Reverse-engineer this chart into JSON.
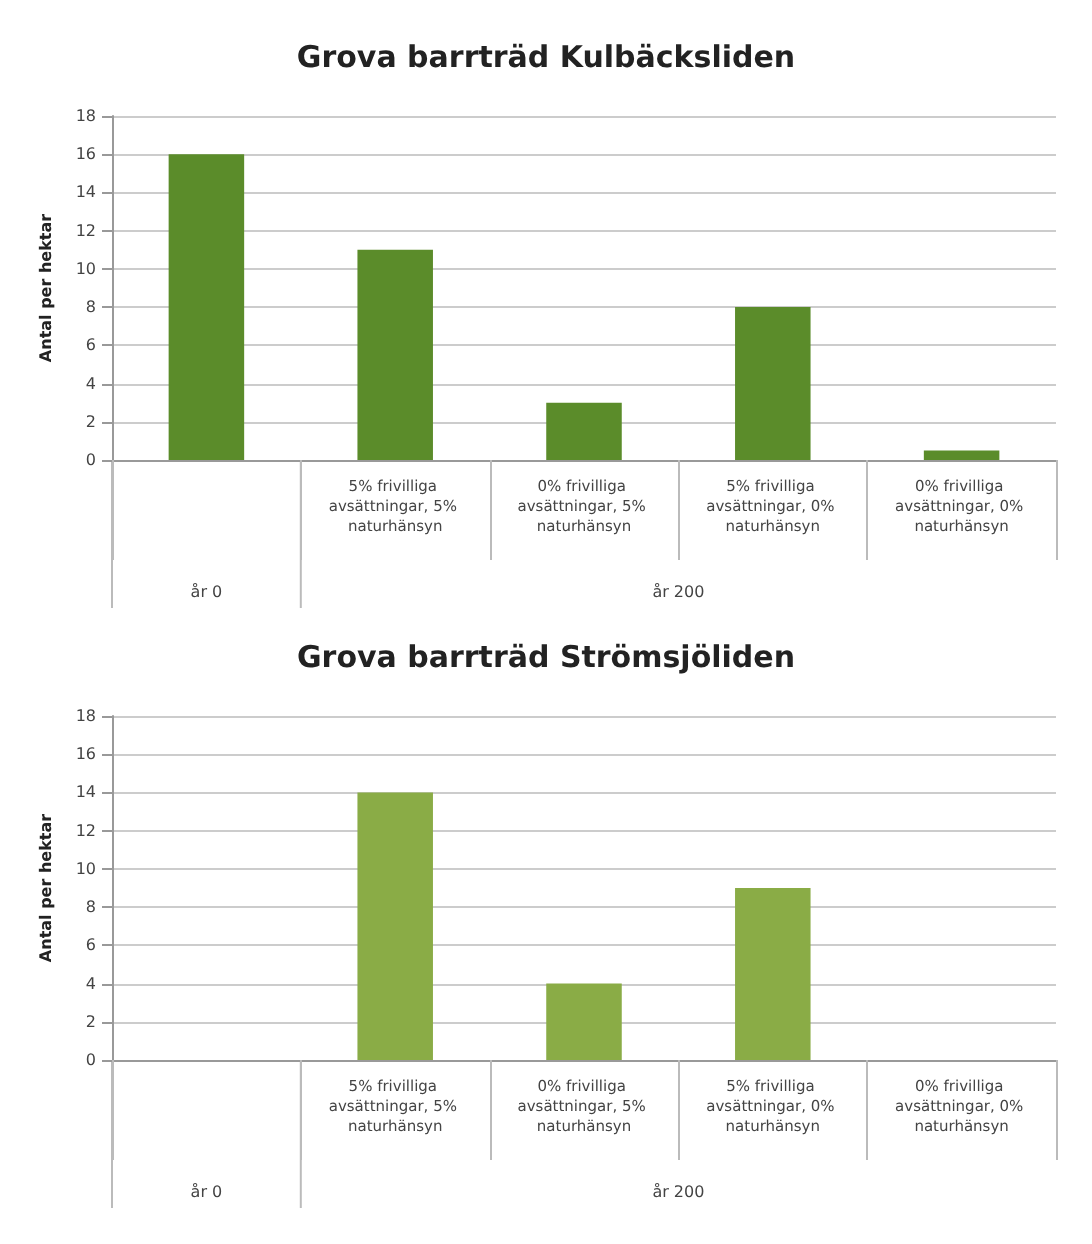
{
  "chart_data": [
    {
      "type": "bar",
      "title": "Grova barrträd Kulbäcksliden",
      "ylabel": "Antal per hektar",
      "categories": [
        null,
        "5% frivilliga avsättningar, 5% naturhänsyn",
        "0% frivilliga avsättningar, 5% naturhänsyn",
        "5% frivilliga avsättningar, 0% naturhänsyn",
        "0% frivilliga avsättningar, 0% naturhänsyn"
      ],
      "values": [
        16,
        11,
        3,
        8,
        0.5
      ],
      "color": "#5b8c2a",
      "ylim": [
        0,
        18
      ],
      "yticks": [
        0,
        2,
        4,
        6,
        8,
        10,
        12,
        14,
        16,
        18
      ],
      "grid": "y",
      "annotations": [
        "år 0",
        "år 200"
      ]
    },
    {
      "type": "bar",
      "title": "Grova barrträd Strömsjöliden",
      "ylabel": "Antal per hektar",
      "categories": [
        null,
        "5% frivilliga avsättningar, 5% naturhänsyn",
        "0% frivilliga avsättningar, 5% naturhänsyn",
        "5% frivilliga avsättningar, 0% naturhänsyn",
        "0% frivilliga avsättningar, 0% naturhänsyn"
      ],
      "values": [
        0,
        14,
        4,
        9,
        0
      ],
      "color": "#8aac46",
      "ylim": [
        0,
        18
      ],
      "yticks": [
        0,
        2,
        4,
        6,
        8,
        10,
        12,
        14,
        16,
        18
      ],
      "grid": "y",
      "annotations": [
        "år 0",
        "år 200"
      ]
    }
  ]
}
